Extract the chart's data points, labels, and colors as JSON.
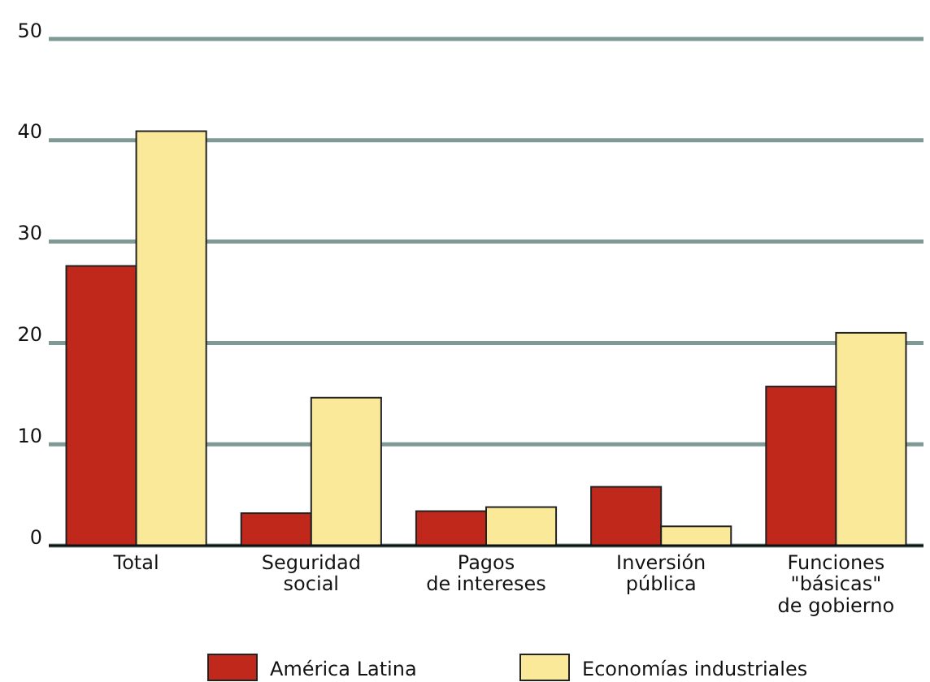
{
  "chart_data": {
    "type": "bar",
    "categories": [
      "Total",
      "Seguridad\nsocial",
      "Pagos\nde intereses",
      "Inversión\npública",
      "Funciones\n\"básicas\"\nde gobierno"
    ],
    "series": [
      {
        "name": "América Latina",
        "color": "#c0281c",
        "values": [
          27.6,
          3.2,
          3.4,
          5.8,
          15.7
        ]
      },
      {
        "name": "Economías industriales",
        "color": "#fbe99a",
        "values": [
          40.9,
          14.6,
          3.8,
          1.9,
          21.0
        ]
      }
    ],
    "ylim": [
      0,
      50
    ],
    "yticks": [
      0,
      10,
      20,
      30,
      40,
      50
    ],
    "grid": "y",
    "legend": "bottom"
  }
}
